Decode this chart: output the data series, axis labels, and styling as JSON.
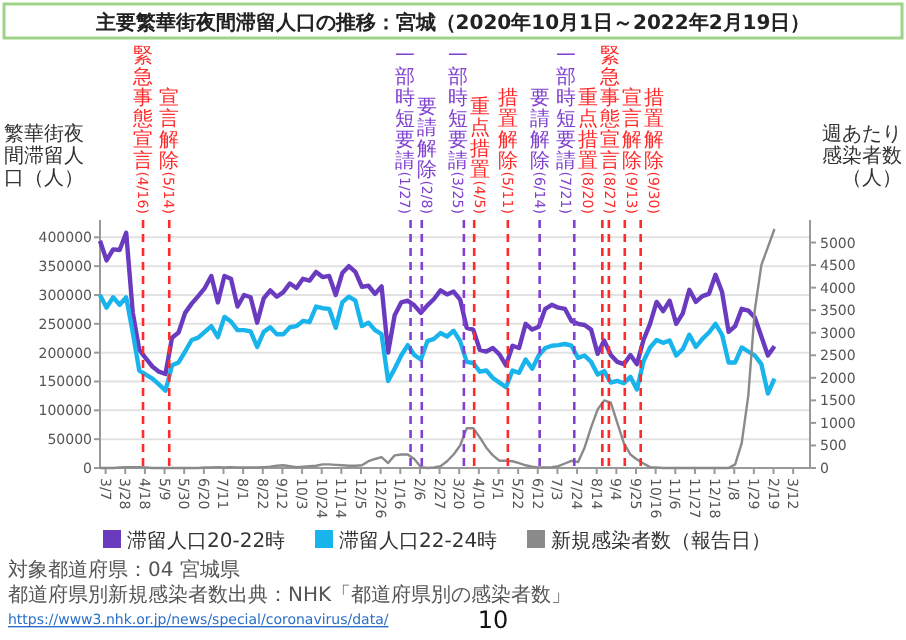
{
  "chart_data": {
    "type": "line",
    "title": "主要繁華街夜間滞留人口の推移：宮城（2020年10月1日～2022年2月19日）",
    "ylabel": "繁華街夜間滞留人口（人）",
    "y2label": "週あたり感染者数（人）",
    "x": [
      "2020-03-01",
      "2020-03-08",
      "2020-03-15",
      "2020-03-22",
      "2020-03-29",
      "2020-04-05",
      "2020-04-12",
      "2020-04-19",
      "2020-04-26",
      "2020-05-03",
      "2020-05-10",
      "2020-05-17",
      "2020-05-24",
      "2020-05-31",
      "2020-06-07",
      "2020-06-14",
      "2020-06-21",
      "2020-06-28",
      "2020-07-05",
      "2020-07-12",
      "2020-07-19",
      "2020-07-26",
      "2020-08-02",
      "2020-08-09",
      "2020-08-16",
      "2020-08-23",
      "2020-08-30",
      "2020-09-06",
      "2020-09-13",
      "2020-09-20",
      "2020-09-27",
      "2020-10-04",
      "2020-10-11",
      "2020-10-18",
      "2020-10-25",
      "2020-11-01",
      "2020-11-08",
      "2020-11-15",
      "2020-11-22",
      "2020-11-29",
      "2020-12-06",
      "2020-12-13",
      "2020-12-20",
      "2020-12-27",
      "2021-01-03",
      "2021-01-10",
      "2021-01-17",
      "2021-01-24",
      "2021-01-31",
      "2021-02-07",
      "2021-02-14",
      "2021-02-21",
      "2021-02-28",
      "2021-03-07",
      "2021-03-14",
      "2021-03-21",
      "2021-03-28",
      "2021-04-04",
      "2021-04-11",
      "2021-04-18",
      "2021-04-25",
      "2021-05-02",
      "2021-05-09",
      "2021-05-16",
      "2021-05-23",
      "2021-05-30",
      "2021-06-06",
      "2021-06-13",
      "2021-06-20",
      "2021-06-27",
      "2021-07-04",
      "2021-07-11",
      "2021-07-18",
      "2021-07-25",
      "2021-08-01",
      "2021-08-08",
      "2021-08-15",
      "2021-08-22",
      "2021-08-29",
      "2021-09-05",
      "2021-09-12",
      "2021-09-19",
      "2021-09-26",
      "2021-10-03",
      "2021-10-10",
      "2021-10-17",
      "2021-10-24",
      "2021-10-31",
      "2021-11-07",
      "2021-11-14",
      "2021-11-21",
      "2021-11-28",
      "2021-12-05",
      "2021-12-12",
      "2021-12-19",
      "2021-12-26",
      "2022-01-02",
      "2022-01-09",
      "2022-01-16",
      "2022-01-23",
      "2022-01-30",
      "2022-02-06",
      "2022-02-13",
      "2022-02-20"
    ],
    "series": [
      {
        "name": "滞留人口20-22時",
        "color": "#6a3bbf",
        "values": [
          394000,
          360000,
          379000,
          378000,
          408000,
          270000,
          205000,
          190000,
          176000,
          167000,
          163000,
          226000,
          235000,
          269000,
          285000,
          298000,
          312000,
          333000,
          287000,
          333000,
          328000,
          280000,
          300000,
          296000,
          252000,
          294000,
          308000,
          297000,
          305000,
          320000,
          312000,
          328000,
          325000,
          340000,
          331000,
          333000,
          300000,
          338000,
          350000,
          340000,
          314000,
          316000,
          302000,
          315000,
          200000,
          265000,
          287000,
          290000,
          282000,
          269000,
          282000,
          293000,
          308000,
          301000,
          306000,
          292000,
          243000,
          240000,
          205000,
          202000,
          208000,
          197000,
          178000,
          212000,
          208000,
          250000,
          240000,
          245000,
          276000,
          283000,
          278000,
          276000,
          255000,
          250000,
          248000,
          240000,
          198000,
          221000,
          196000,
          184000,
          180000,
          196000,
          180000,
          222000,
          250000,
          288000,
          272000,
          290000,
          250000,
          268000,
          309000,
          288000,
          298000,
          302000,
          335000,
          305000,
          236000,
          246000,
          276000,
          273000,
          261000,
          228000,
          195000,
          211000
        ]
      },
      {
        "name": "滞留人口22-24時",
        "color": "#1ab4ec",
        "values": [
          300000,
          278000,
          296000,
          283000,
          296000,
          235000,
          169000,
          162000,
          155000,
          145000,
          134000,
          178000,
          183000,
          202000,
          222000,
          226000,
          236000,
          246000,
          227000,
          262000,
          254000,
          239000,
          239000,
          237000,
          210000,
          236000,
          244000,
          232000,
          232000,
          244000,
          246000,
          255000,
          253000,
          280000,
          277000,
          276000,
          243000,
          287000,
          297000,
          290000,
          246000,
          252000,
          239000,
          232000,
          151000,
          172000,
          195000,
          213000,
          196000,
          188000,
          220000,
          224000,
          234000,
          228000,
          238000,
          220000,
          184000,
          182000,
          167000,
          169000,
          156000,
          148000,
          140000,
          169000,
          165000,
          188000,
          172000,
          195000,
          208000,
          212000,
          213000,
          215000,
          212000,
          191000,
          195000,
          184000,
          162000,
          168000,
          148000,
          151000,
          147000,
          158000,
          136000,
          185000,
          209000,
          222000,
          217000,
          221000,
          195000,
          206000,
          231000,
          210000,
          224000,
          235000,
          250000,
          231000,
          183000,
          183000,
          209000,
          202000,
          195000,
          180000,
          129000,
          155000
        ]
      },
      {
        "name": "新規感染者数（報告日）",
        "color": "#8a8a8a",
        "axis": "y2",
        "values": [
          0,
          0,
          0,
          10,
          20,
          20,
          20,
          10,
          0,
          0,
          0,
          0,
          0,
          0,
          0,
          0,
          10,
          10,
          20,
          10,
          20,
          10,
          10,
          10,
          10,
          20,
          30,
          50,
          60,
          40,
          20,
          30,
          40,
          50,
          80,
          80,
          70,
          60,
          50,
          50,
          60,
          150,
          200,
          240,
          110,
          280,
          300,
          300,
          200,
          20,
          0,
          10,
          40,
          150,
          300,
          500,
          880,
          880,
          680,
          450,
          280,
          160,
          160,
          150,
          110,
          60,
          30,
          10,
          10,
          20,
          40,
          100,
          160,
          130,
          450,
          900,
          1300,
          1500,
          1450,
          1000,
          550,
          300,
          190,
          100,
          20,
          10,
          0,
          0,
          0,
          0,
          0,
          0,
          0,
          0,
          0,
          0,
          0,
          80,
          550,
          1600,
          3500,
          4500,
          4900,
          5300
        ]
      }
    ],
    "xlim": [
      "2020-03-01",
      "2022-03-30"
    ],
    "xticks": [
      {
        "value": "2020-03-07",
        "label": "3/7"
      },
      {
        "value": "2020-03-28",
        "label": "3/28"
      },
      {
        "value": "2020-04-18",
        "label": "4/18"
      },
      {
        "value": "2020-05-09",
        "label": "5/9"
      },
      {
        "value": "2020-05-30",
        "label": "5/30"
      },
      {
        "value": "2020-06-20",
        "label": "6/20"
      },
      {
        "value": "2020-07-11",
        "label": "7/11"
      },
      {
        "value": "2020-08-01",
        "label": "8/1"
      },
      {
        "value": "2020-08-22",
        "label": "8/22"
      },
      {
        "value": "2020-09-12",
        "label": "9/12"
      },
      {
        "value": "2020-10-03",
        "label": "10/3"
      },
      {
        "value": "2020-10-24",
        "label": "10/24"
      },
      {
        "value": "2020-11-14",
        "label": "11/14"
      },
      {
        "value": "2020-12-05",
        "label": "12/5"
      },
      {
        "value": "2020-12-26",
        "label": "12/26"
      },
      {
        "value": "2021-01-16",
        "label": "1/16"
      },
      {
        "value": "2021-02-06",
        "label": "2/6"
      },
      {
        "value": "2021-02-27",
        "label": "2/27"
      },
      {
        "value": "2021-03-20",
        "label": "3/20"
      },
      {
        "value": "2021-04-10",
        "label": "4/10"
      },
      {
        "value": "2021-05-01",
        "label": "5/1"
      },
      {
        "value": "2021-05-22",
        "label": "5/22"
      },
      {
        "value": "2021-06-12",
        "label": "6/12"
      },
      {
        "value": "2021-07-03",
        "label": "7/3"
      },
      {
        "value": "2021-07-24",
        "label": "7/24"
      },
      {
        "value": "2021-08-14",
        "label": "8/14"
      },
      {
        "value": "2021-09-04",
        "label": "9/4"
      },
      {
        "value": "2021-09-25",
        "label": "9/25"
      },
      {
        "value": "2021-10-16",
        "label": "10/16"
      },
      {
        "value": "2021-11-06",
        "label": "11/6"
      },
      {
        "value": "2021-11-27",
        "label": "11/27"
      },
      {
        "value": "2021-12-18",
        "label": "12/18"
      },
      {
        "value": "2022-01-08",
        "label": "1/8"
      },
      {
        "value": "2022-01-29",
        "label": "1/29"
      },
      {
        "value": "2022-02-19",
        "label": "2/19"
      },
      {
        "value": "2022-03-12",
        "label": "3/12"
      }
    ],
    "ylim": [
      0,
      430000
    ],
    "yticks": [
      0,
      50000,
      100000,
      150000,
      200000,
      250000,
      300000,
      350000,
      400000
    ],
    "y2lim": [
      0,
      5500
    ],
    "y2ticks": [
      0,
      500,
      1000,
      1500,
      2000,
      2500,
      3000,
      3500,
      4000,
      4500,
      5000
    ],
    "ref_lines": [
      {
        "axis": "x",
        "value": "2020-04-16",
        "label": "緊急事態宣言(4/16)",
        "color": "#ff2a2a",
        "line_style": "dashed"
      },
      {
        "axis": "x",
        "value": "2020-05-14",
        "label": "宣言解除(5/14)",
        "color": "#ff2a2a",
        "line_style": "dashed"
      },
      {
        "axis": "x",
        "value": "2021-01-27",
        "label": "一部時短要請(1/27)",
        "color": "#8040d0",
        "line_style": "dashed"
      },
      {
        "axis": "x",
        "value": "2021-02-08",
        "label": "要請解除(2/8)",
        "color": "#8040d0",
        "line_style": "dashed"
      },
      {
        "axis": "x",
        "value": "2021-03-25",
        "label": "一部時短要請(3/25)",
        "color": "#8040d0",
        "line_style": "dashed"
      },
      {
        "axis": "x",
        "value": "2021-04-05",
        "label": "重点措置(4/5)",
        "color": "#ff2a2a",
        "line_style": "dashed"
      },
      {
        "axis": "x",
        "value": "2021-05-11",
        "label": "措置解除(5/11)",
        "color": "#ff2a2a",
        "line_style": "dashed"
      },
      {
        "axis": "x",
        "value": "2021-06-14",
        "label": "要請解除(6/14)",
        "color": "#8040d0",
        "line_style": "dashed"
      },
      {
        "axis": "x",
        "value": "2021-07-21",
        "label": "一部時短要請(7/21)",
        "color": "#8040d0",
        "line_style": "dashed"
      },
      {
        "axis": "x",
        "value": "2021-08-20",
        "label": "重点措置(8/20)",
        "color": "#ff2a2a",
        "line_style": "dashed"
      },
      {
        "axis": "x",
        "value": "2021-08-27",
        "label": "緊急事態宣言(8/27)",
        "color": "#ff2a2a",
        "line_style": "dashed"
      },
      {
        "axis": "x",
        "value": "2021-09-13",
        "label": "宣言解除(9/13)",
        "color": "#ff2a2a",
        "line_style": "dashed"
      },
      {
        "axis": "x",
        "value": "2021-09-30",
        "label": "措置解除(9/30)",
        "color": "#ff2a2a",
        "line_style": "dashed"
      }
    ],
    "annotations": [
      "対象都道府県：04 宮城県",
      "都道府県別新規感染者数出典：NHK「都道府県別の感染者数」",
      "https://www3.nhk.or.jp/news/special/coronavirus/data/",
      "10"
    ],
    "grid": "y",
    "legend": "bottom",
    "marker": "none",
    "line_style": "solid"
  }
}
